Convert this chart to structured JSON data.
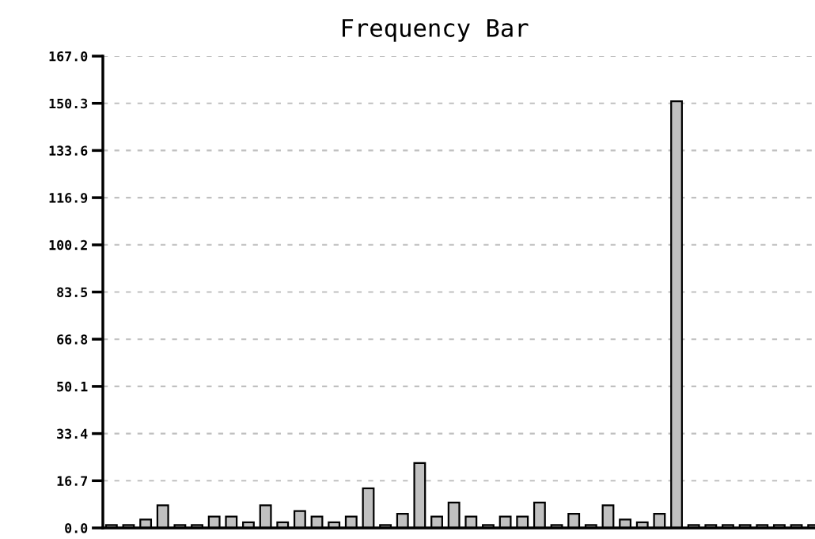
{
  "chart_data": {
    "type": "bar",
    "title": "Frequency Bar",
    "categories": [
      null,
      null,
      null,
      null,
      null,
      null,
      null,
      null,
      null,
      null,
      null,
      null,
      null,
      null,
      null,
      null,
      null,
      null,
      null,
      null,
      null,
      null,
      null,
      null,
      null,
      null,
      null,
      null,
      null,
      null,
      null,
      null,
      null,
      null,
      null,
      null,
      null,
      null,
      null,
      null,
      null,
      null
    ],
    "values": [
      1,
      1,
      3,
      8,
      1,
      1,
      4,
      4,
      2,
      8,
      2,
      6,
      4,
      2,
      4,
      14,
      1,
      5,
      23,
      4,
      9,
      4,
      1,
      4,
      4,
      9,
      1,
      5,
      1,
      8,
      3,
      2,
      5,
      151,
      1,
      1,
      1,
      1,
      1,
      1,
      1,
      1
    ],
    "color": "#c0c0c0",
    "ylim": [
      0,
      167
    ],
    "yticks": [
      {
        "value": 0,
        "label": "0.0"
      },
      16.7,
      33.4,
      50.1,
      66.8,
      83.5,
      100.2,
      116.9,
      133.6,
      150.3,
      {
        "value": 167,
        "label": "167.0"
      }
    ],
    "grid": "y",
    "tick_labels": "y"
  }
}
